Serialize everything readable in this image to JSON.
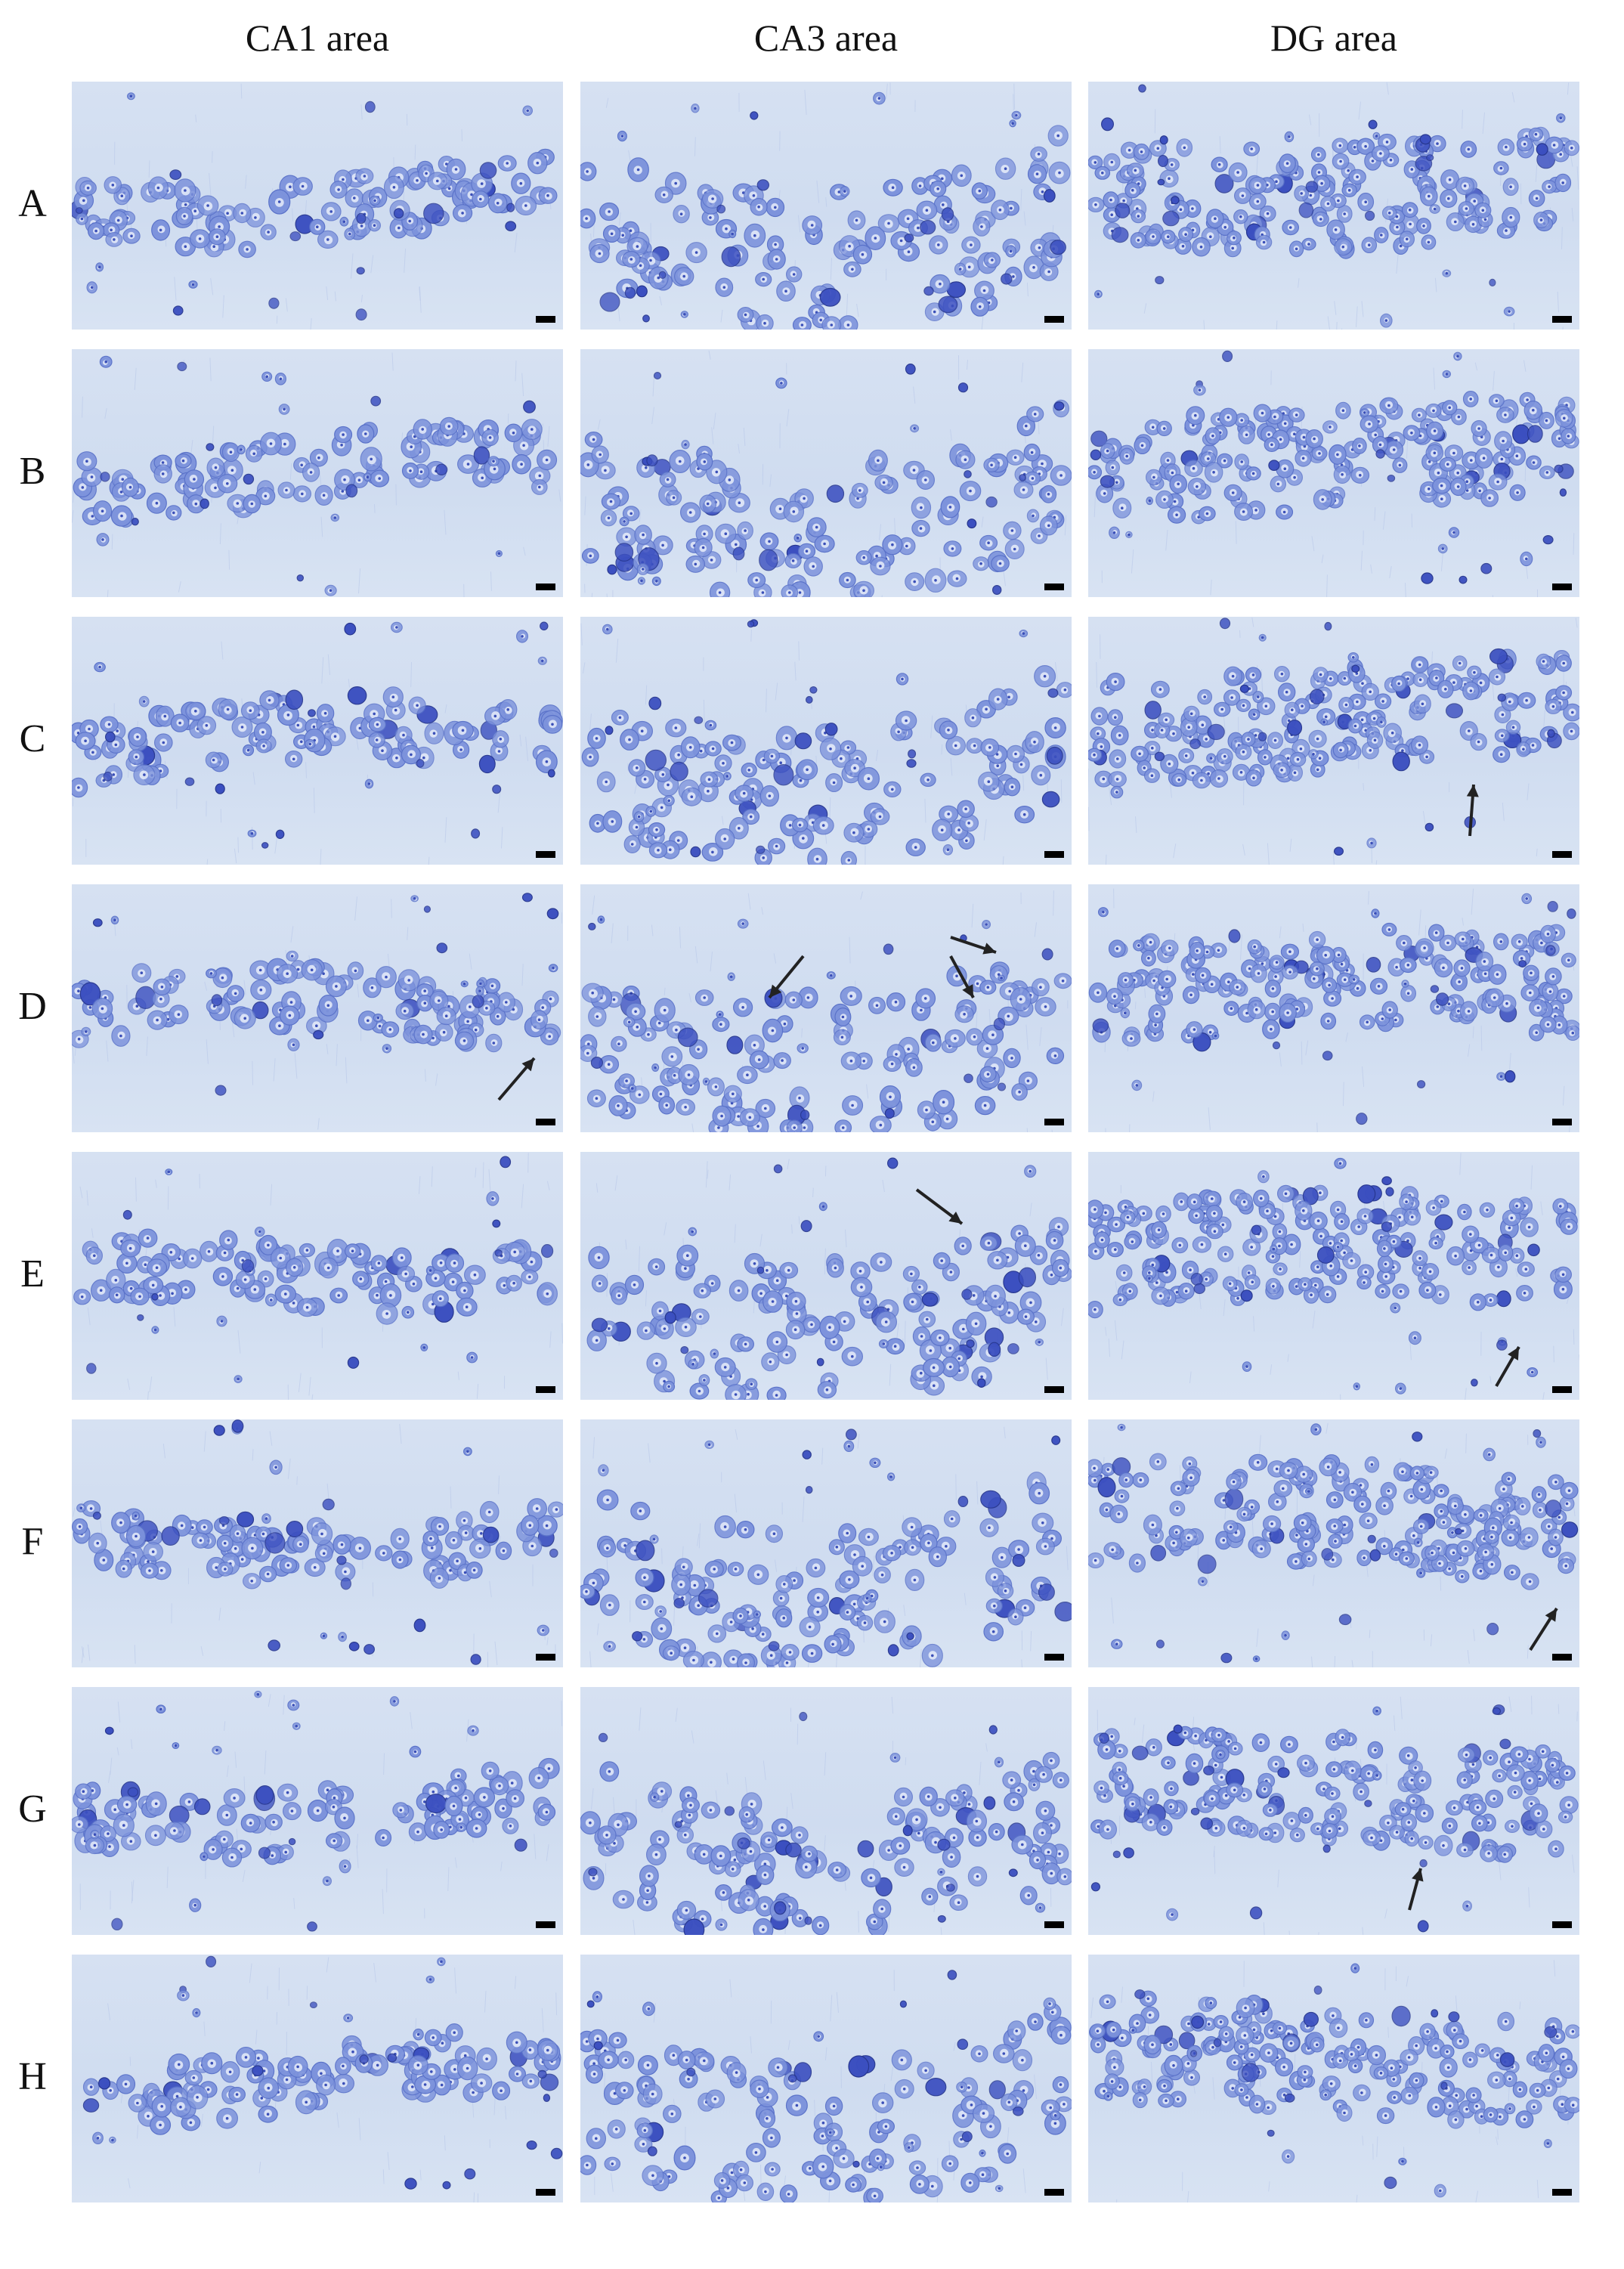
{
  "columns": [
    {
      "label": "CA1 area"
    },
    {
      "label": "CA3 area"
    },
    {
      "label": "DG area"
    }
  ],
  "rows": [
    {
      "label": "A"
    },
    {
      "label": "B"
    },
    {
      "label": "C"
    },
    {
      "label": "D"
    },
    {
      "label": "E"
    },
    {
      "label": "F"
    },
    {
      "label": "G"
    },
    {
      "label": "H"
    }
  ],
  "stain_colors": {
    "background": "#d3dff1",
    "cell_fill": "#7d93dc",
    "cell_dark": "#3b4fc0",
    "nucleus": "#eef2fb",
    "arrow": "#222222",
    "scale_bar": "#000000"
  },
  "arrow_marks": [
    {
      "row": "C",
      "column": "DG area",
      "count": 1
    },
    {
      "row": "D",
      "column": "CA1 area",
      "count": 1
    },
    {
      "row": "D",
      "column": "CA3 area",
      "count": 3
    },
    {
      "row": "E",
      "column": "CA3 area",
      "count": 1
    },
    {
      "row": "E",
      "column": "DG area",
      "count": 1
    },
    {
      "row": "F",
      "column": "DG area",
      "count": 1
    },
    {
      "row": "G",
      "column": "DG area",
      "count": 1
    }
  ]
}
